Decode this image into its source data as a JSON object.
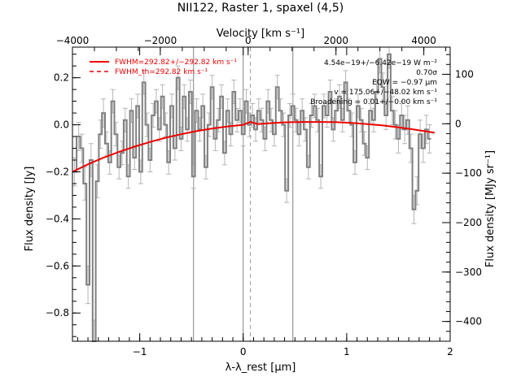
{
  "chart_data": {
    "type": "line",
    "title": "NII122, Raster 1, spaxel (4,5)",
    "xlabel": "λ-λ_rest [μm]",
    "ylabel": "Flux density [Jy]",
    "top_label": "Velocity [km s⁻¹]",
    "right_label": "Flux density [MJy sr⁻¹]",
    "xlim": [
      -1.65,
      2.0
    ],
    "ylim": [
      -0.92,
      0.33
    ],
    "top_xlim": [
      -4000,
      4600
    ],
    "right_ylim": [
      -440,
      155
    ],
    "x_ticks": [
      -1,
      0,
      1,
      2
    ],
    "y_ticks": [
      -0.8,
      -0.6,
      -0.4,
      -0.2,
      0.0,
      0.2
    ],
    "top_ticks": [
      -4000,
      -2000,
      0,
      2000,
      4000
    ],
    "right_ticks": [
      -400,
      -300,
      -200,
      -100,
      0,
      100
    ],
    "x_tick_labels": [
      "−1",
      "0",
      "1",
      "2"
    ],
    "y_tick_labels": [
      "−0.8",
      "−0.6",
      "−0.4",
      "−0.2",
      "0.0",
      "0.2"
    ],
    "top_tick_labels": [
      "−4000",
      "−2000",
      "0",
      "2000",
      "4000"
    ],
    "right_tick_labels": [
      "−400",
      "−300",
      "−200",
      "−100",
      "0",
      "100"
    ],
    "legend": [
      {
        "label": "FWHM=292.82+/−292.82 km s⁻¹",
        "style": "solid",
        "color": "#ee0000"
      },
      {
        "label": "FWHM_th=292.82 km s⁻¹",
        "style": "dashed",
        "color": "#ee0000"
      }
    ],
    "annotations": [
      "4.54e−19+/−6.42e−19 W m⁻²",
      "0.70σ",
      "EQW = −0.97 μm",
      "v = 175.06+/−48.02 km s⁻¹",
      "Broadening = 0.01+/−0.00 km s⁻¹"
    ],
    "vertical_lines": {
      "solid": [
        -0.48,
        0.0,
        0.48
      ],
      "dashed": [
        0.07
      ]
    },
    "series": [
      {
        "style": "step-errorbars",
        "color": "#808080",
        "x": [
          -1.63,
          -1.59,
          -1.56,
          -1.53,
          -1.5,
          -1.47,
          -1.44,
          -1.41,
          -1.38,
          -1.35,
          -1.32,
          -1.29,
          -1.26,
          -1.23,
          -1.2,
          -1.17,
          -1.14,
          -1.11,
          -1.08,
          -1.05,
          -1.02,
          -0.99,
          -0.96,
          -0.93,
          -0.9,
          -0.87,
          -0.84,
          -0.81,
          -0.78,
          -0.75,
          -0.72,
          -0.69,
          -0.66,
          -0.63,
          -0.6,
          -0.57,
          -0.54,
          -0.51,
          -0.48,
          -0.45,
          -0.42,
          -0.39,
          -0.36,
          -0.33,
          -0.3,
          -0.27,
          -0.24,
          -0.21,
          -0.18,
          -0.15,
          -0.12,
          -0.09,
          -0.06,
          -0.03,
          0.0,
          0.03,
          0.06,
          0.09,
          0.12,
          0.15,
          0.18,
          0.21,
          0.24,
          0.27,
          0.3,
          0.33,
          0.36,
          0.39,
          0.42,
          0.45,
          0.48,
          0.51,
          0.54,
          0.57,
          0.6,
          0.63,
          0.66,
          0.69,
          0.72,
          0.75,
          0.78,
          0.81,
          0.84,
          0.87,
          0.9,
          0.93,
          0.96,
          0.99,
          1.02,
          1.05,
          1.08,
          1.11,
          1.14,
          1.17,
          1.2,
          1.23,
          1.26,
          1.29,
          1.32,
          1.35,
          1.38,
          1.41,
          1.44,
          1.47,
          1.5,
          1.53,
          1.56,
          1.59,
          1.62,
          1.65,
          1.68,
          1.71,
          1.74,
          1.77,
          1.8
        ],
        "y": [
          -0.2,
          -0.05,
          -0.1,
          -0.25,
          -0.68,
          -0.15,
          -0.92,
          -0.24,
          -0.04,
          0.05,
          -0.08,
          -0.16,
          0.1,
          -0.04,
          -0.18,
          -0.12,
          0.02,
          -0.22,
          0.06,
          -0.14,
          0.08,
          -0.2,
          0.18,
          0.0,
          -0.15,
          0.04,
          0.1,
          -0.02,
          0.12,
          0.0,
          -0.16,
          0.08,
          -0.1,
          0.2,
          -0.06,
          0.12,
          -0.02,
          0.14,
          -0.22,
          0.06,
          -0.02,
          0.08,
          -0.18,
          0.0,
          0.16,
          -0.06,
          0.02,
          0.12,
          -0.12,
          0.06,
          -0.04,
          0.14,
          0.02,
          0.06,
          -0.04,
          0.1,
          0.0,
          0.04,
          -0.02,
          0.06,
          0.02,
          -0.06,
          0.1,
          0.02,
          -0.04,
          0.16,
          0.06,
          0.0,
          -0.28,
          0.04,
          0.08,
          0.02,
          -0.04,
          0.06,
          -0.02,
          -0.18,
          0.04,
          0.08,
          0.02,
          -0.22,
          0.08,
          0.04,
          0.14,
          -0.02,
          0.06,
          0.12,
          0.02,
          0.18,
          0.06,
          0.0,
          -0.16,
          0.08,
          0.02,
          -0.08,
          -0.14,
          0.06,
          0.02,
          0.14,
          0.28,
          0.16,
          0.04,
          0.3,
          0.06,
          0.0,
          -0.06,
          0.04,
          -0.02,
          0.02,
          -0.1,
          -0.36,
          -0.28,
          -0.04,
          -0.1,
          -0.02,
          -0.06
        ],
        "err": [
          0.06,
          0.06,
          0.06,
          0.07,
          0.08,
          0.07,
          0.09,
          0.07,
          0.06,
          0.06,
          0.05,
          0.05,
          0.05,
          0.05,
          0.05,
          0.05,
          0.05,
          0.05,
          0.05,
          0.05,
          0.05,
          0.05,
          0.05,
          0.05,
          0.05,
          0.05,
          0.05,
          0.05,
          0.05,
          0.05,
          0.05,
          0.05,
          0.05,
          0.05,
          0.05,
          0.05,
          0.05,
          0.05,
          0.05,
          0.05,
          0.05,
          0.05,
          0.05,
          0.05,
          0.05,
          0.05,
          0.05,
          0.05,
          0.05,
          0.05,
          0.05,
          0.05,
          0.05,
          0.05,
          0.05,
          0.05,
          0.05,
          0.05,
          0.05,
          0.05,
          0.05,
          0.05,
          0.05,
          0.05,
          0.05,
          0.05,
          0.05,
          0.05,
          0.05,
          0.05,
          0.05,
          0.05,
          0.05,
          0.05,
          0.05,
          0.05,
          0.05,
          0.05,
          0.05,
          0.05,
          0.05,
          0.05,
          0.05,
          0.05,
          0.05,
          0.05,
          0.05,
          0.05,
          0.05,
          0.05,
          0.05,
          0.05,
          0.05,
          0.05,
          0.05,
          0.05,
          0.05,
          0.05,
          0.06,
          0.06,
          0.06,
          0.06,
          0.06,
          0.06,
          0.06,
          0.06,
          0.06,
          0.06,
          0.06,
          0.06,
          0.06,
          0.06,
          0.06,
          0.06,
          0.06
        ]
      },
      {
        "style": "fit-line",
        "color": "#ee0000",
        "x": [
          -1.65,
          -1.5,
          -1.35,
          -1.2,
          -1.05,
          -0.9,
          -0.75,
          -0.6,
          -0.45,
          -0.3,
          -0.15,
          0.0,
          0.07,
          0.14,
          0.3,
          0.45,
          0.6,
          0.75,
          0.9,
          1.05,
          1.2,
          1.35,
          1.5,
          1.65,
          1.85
        ],
        "y": [
          -0.2,
          -0.168,
          -0.14,
          -0.115,
          -0.093,
          -0.073,
          -0.055,
          -0.04,
          -0.027,
          -0.016,
          -0.007,
          0.0,
          0.012,
          0.003,
          0.008,
          0.011,
          0.012,
          0.012,
          0.011,
          0.008,
          0.003,
          -0.003,
          -0.011,
          -0.02,
          -0.034
        ]
      }
    ]
  }
}
